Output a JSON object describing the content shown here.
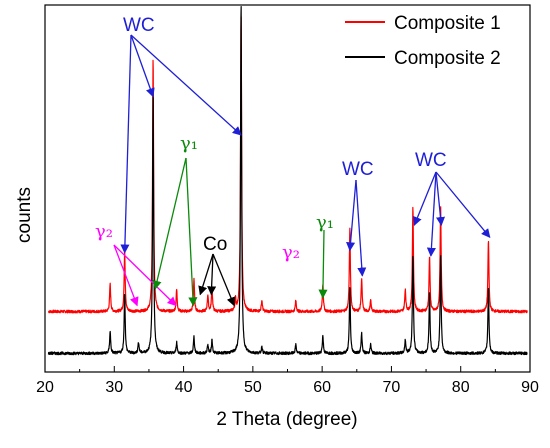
{
  "chart_data": {
    "type": "line",
    "xlabel": "2 Theta (degree)",
    "ylabel": "counts",
    "xlim": [
      20,
      90
    ],
    "xticks": [
      "20",
      "30",
      "40",
      "50",
      "60",
      "70",
      "80",
      "90"
    ],
    "grid": false,
    "legend_position": "top-right",
    "series": [
      {
        "name": "Composite 1",
        "color": "#ff0000",
        "baseline": 0.38,
        "peaks": [
          {
            "x": 29.4,
            "h": 0.25
          },
          {
            "x": 31.5,
            "h": 0.55
          },
          {
            "x": 35.6,
            "h": 2.3
          },
          {
            "x": 39.0,
            "h": 0.2
          },
          {
            "x": 41.5,
            "h": 0.3
          },
          {
            "x": 43.5,
            "h": 0.15
          },
          {
            "x": 44.1,
            "h": 0.22
          },
          {
            "x": 47.5,
            "h": 0.1
          },
          {
            "x": 48.3,
            "h": 2.7
          },
          {
            "x": 51.3,
            "h": 0.1
          },
          {
            "x": 56.2,
            "h": 0.1
          },
          {
            "x": 60.1,
            "h": 0.25
          },
          {
            "x": 64.0,
            "h": 0.75
          },
          {
            "x": 65.7,
            "h": 0.3
          },
          {
            "x": 67.0,
            "h": 0.1
          },
          {
            "x": 72.0,
            "h": 0.2
          },
          {
            "x": 73.1,
            "h": 0.95
          },
          {
            "x": 75.5,
            "h": 0.5
          },
          {
            "x": 77.1,
            "h": 0.95
          },
          {
            "x": 84.0,
            "h": 0.65
          }
        ]
      },
      {
        "name": "Composite 2",
        "color": "#000000",
        "baseline": 0.0,
        "peaks": [
          {
            "x": 29.4,
            "h": 0.2
          },
          {
            "x": 31.5,
            "h": 0.55
          },
          {
            "x": 33.5,
            "h": 0.1
          },
          {
            "x": 35.6,
            "h": 2.4
          },
          {
            "x": 39.0,
            "h": 0.1
          },
          {
            "x": 41.5,
            "h": 0.15
          },
          {
            "x": 43.5,
            "h": 0.08
          },
          {
            "x": 44.1,
            "h": 0.12
          },
          {
            "x": 48.3,
            "h": 3.2
          },
          {
            "x": 51.3,
            "h": 0.06
          },
          {
            "x": 56.2,
            "h": 0.08
          },
          {
            "x": 60.1,
            "h": 0.16
          },
          {
            "x": 64.0,
            "h": 0.6
          },
          {
            "x": 65.7,
            "h": 0.18
          },
          {
            "x": 67.0,
            "h": 0.08
          },
          {
            "x": 72.0,
            "h": 0.12
          },
          {
            "x": 73.1,
            "h": 0.9
          },
          {
            "x": 75.5,
            "h": 0.55
          },
          {
            "x": 77.1,
            "h": 0.9
          },
          {
            "x": 84.0,
            "h": 0.6
          }
        ]
      }
    ],
    "annotations": [
      {
        "label": "WC",
        "color": "#1f1fd6",
        "targets": [
          [
            31.5,
            0.93
          ],
          [
            35.6,
            2.35
          ],
          [
            48.3,
            2.0
          ]
        ]
      },
      {
        "label": "γ₂",
        "color": "#ff00ff",
        "targets": [
          [
            33.3,
            0.45
          ],
          [
            38.9,
            0.45
          ]
        ]
      },
      {
        "label": "γ₁",
        "color": "#0a8a0a",
        "targets": [
          [
            35.9,
            0.6
          ],
          [
            41.4,
            0.45
          ]
        ]
      },
      {
        "label": "Co",
        "color": "#000000",
        "targets": [
          [
            42.4,
            0.55
          ],
          [
            44.0,
            0.55
          ],
          [
            47.3,
            0.45
          ]
        ]
      },
      {
        "label": "γ₂",
        "color": "#ff00ff",
        "targets": []
      },
      {
        "label": "γ₁",
        "color": "#0a8a0a",
        "targets": [
          [
            60.1,
            0.52
          ]
        ]
      },
      {
        "label": "WC",
        "color": "#1f1fd6",
        "targets": [
          [
            64.0,
            0.95
          ],
          [
            65.8,
            0.72
          ]
        ]
      },
      {
        "label": "WC",
        "color": "#1f1fd6",
        "targets": [
          [
            73.3,
            1.18
          ],
          [
            75.7,
            0.9
          ],
          [
            77.2,
            1.18
          ],
          [
            84.2,
            1.07
          ]
        ]
      }
    ]
  }
}
